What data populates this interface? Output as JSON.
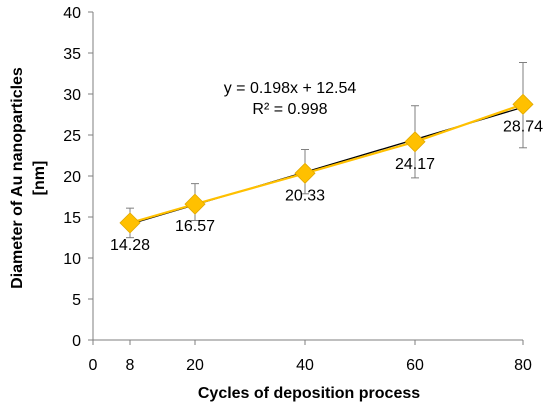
{
  "chart_data": {
    "type": "line",
    "title": "",
    "xlabel": "Cycles of deposition process",
    "ylabel_line1": "Diameter of Au  nanoparticles",
    "ylabel_line2": "[nm]",
    "xlim": [
      0,
      80
    ],
    "ylim": [
      0,
      40
    ],
    "x_ticks": [
      0,
      8,
      20,
      40,
      60,
      80
    ],
    "y_ticks": [
      0,
      5,
      10,
      15,
      20,
      25,
      30,
      35,
      40
    ],
    "grid": false,
    "legend": "none",
    "series": [
      {
        "x": [
          8,
          20,
          40,
          60,
          80
        ],
        "y": [
          14.28,
          16.57,
          20.33,
          24.17,
          28.74
        ],
        "labels": [
          "14.28",
          "16.57",
          "20.33",
          "24.17",
          "28.74"
        ],
        "error_low": [
          1.8,
          2.0,
          2.5,
          4.4,
          5.3
        ],
        "error_high": [
          1.8,
          2.5,
          2.9,
          4.4,
          5.1
        ],
        "marker": "diamond",
        "marker_color": "#ffc000",
        "line_color": "#ffc000"
      }
    ],
    "trendline": {
      "type": "linear",
      "slope": 0.198,
      "intercept": 12.54,
      "equation": "y = 0.198x + 12.54",
      "r_squared": "R² = 0.998",
      "color": "#000000"
    }
  }
}
